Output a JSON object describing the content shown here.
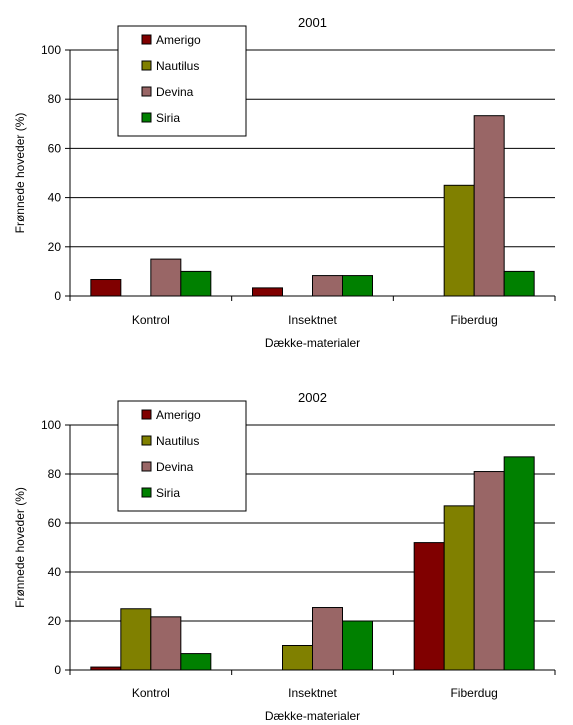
{
  "chart_data": [
    {
      "type": "bar",
      "title": "2001",
      "xlabel": "Dække-materialer",
      "ylabel": "Frønnede hoveder (%)",
      "ylim": [
        0,
        100
      ],
      "yticks": [
        0,
        20,
        40,
        60,
        80,
        100
      ],
      "grid": "horizontal",
      "legend_placement": "top-left",
      "categories": [
        "Kontrol",
        "Insektnet",
        "Fiberdug"
      ],
      "series": [
        {
          "name": "Amerigo",
          "color": "#800000",
          "values": [
            6.7,
            3.3,
            0
          ]
        },
        {
          "name": "Nautilus",
          "color": "#808000",
          "values": [
            0,
            0,
            45
          ]
        },
        {
          "name": "Devina",
          "color": "#996666",
          "values": [
            15,
            8.3,
            73.3
          ]
        },
        {
          "name": "Siria",
          "color": "#008000",
          "values": [
            10,
            8.3,
            10
          ]
        }
      ]
    },
    {
      "type": "bar",
      "title": "2002",
      "xlabel": "Dække-materialer",
      "ylabel": "Frønnede hoveder (%)",
      "ylim": [
        0,
        100
      ],
      "yticks": [
        0,
        20,
        40,
        60,
        80,
        100
      ],
      "grid": "horizontal",
      "legend_placement": "top-left",
      "categories": [
        "Kontrol",
        "Insektnet",
        "Fiberdug"
      ],
      "series": [
        {
          "name": "Amerigo",
          "color": "#800000",
          "values": [
            1.2,
            0,
            52
          ]
        },
        {
          "name": "Nautilus",
          "color": "#808000",
          "values": [
            25,
            10,
            67
          ]
        },
        {
          "name": "Devina",
          "color": "#996666",
          "values": [
            21.7,
            25.5,
            81
          ]
        },
        {
          "name": "Siria",
          "color": "#008000",
          "values": [
            6.7,
            20,
            87
          ]
        }
      ]
    }
  ]
}
